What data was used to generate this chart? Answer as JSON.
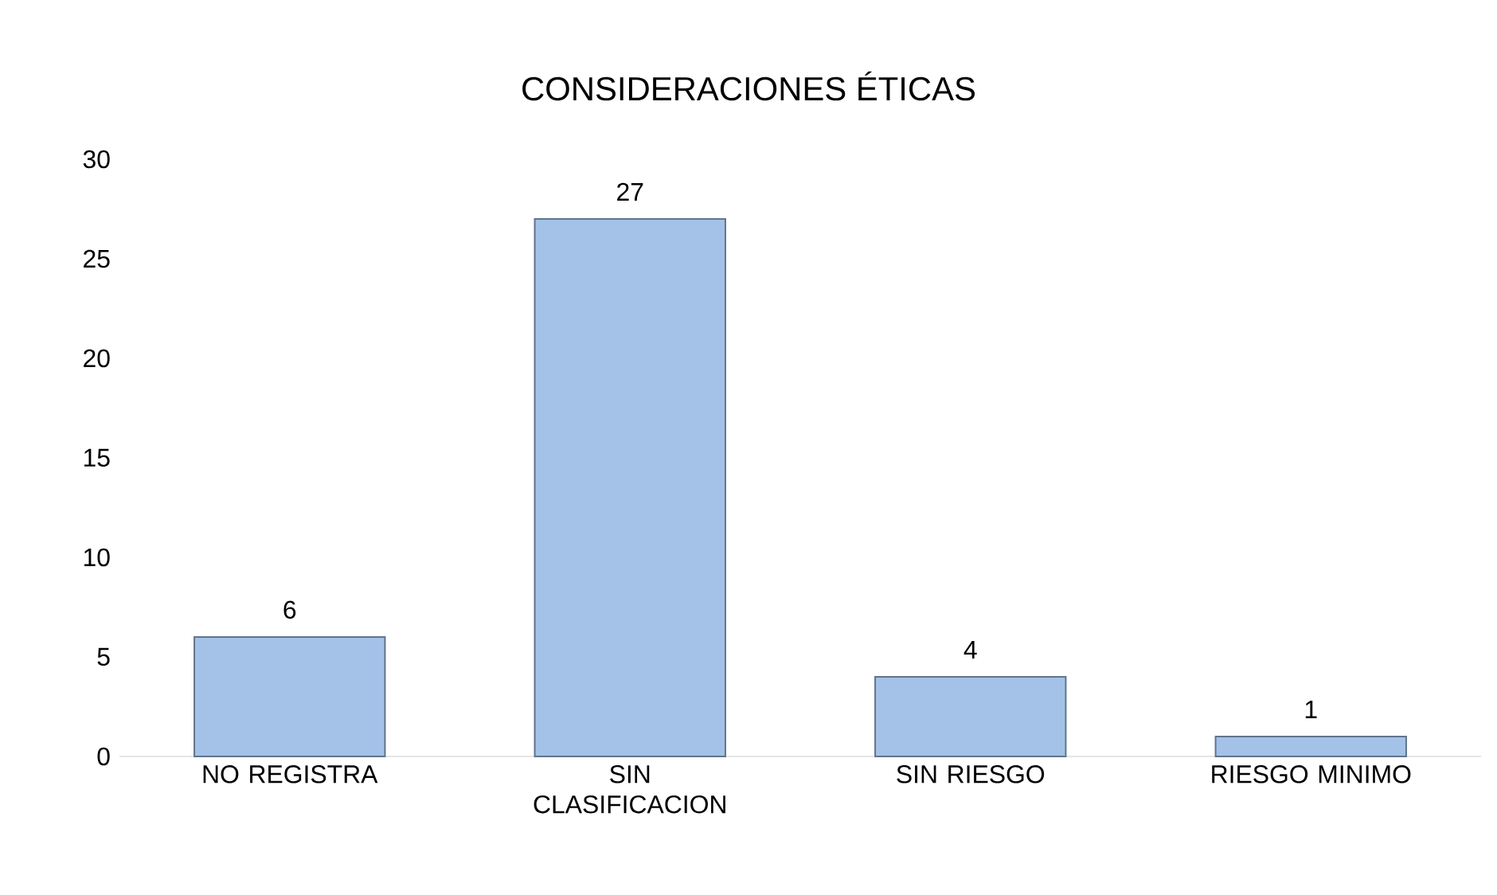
{
  "chart_data": {
    "type": "bar",
    "title": "CONSIDERACIONES ÉTICAS",
    "categories": [
      "NO REGISTRA",
      "SIN CLASIFICACION",
      "SIN RIESGO",
      "RIESGO MINIMO"
    ],
    "values": [
      6,
      27,
      4,
      1
    ],
    "color": "#a4c2e8",
    "ylim": [
      0,
      30
    ],
    "yticks": [
      0,
      5,
      10,
      15,
      20,
      25,
      30
    ],
    "grid": false,
    "data_labels": true
  }
}
